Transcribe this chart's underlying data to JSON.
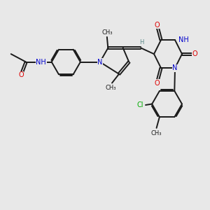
{
  "bg_color": "#e8e8e8",
  "bond_color": "#1a1a1a",
  "bond_lw": 1.4,
  "dbl_off": 0.055,
  "atom_colors": {
    "N": "#0000cc",
    "O": "#dd0000",
    "Cl": "#00aa00",
    "C": "#1a1a1a",
    "H": "#5a8888"
  },
  "fs": 7.0,
  "fs_small": 6.0,
  "xlim": [
    0.0,
    10.5
  ],
  "ylim": [
    -3.5,
    5.5
  ]
}
